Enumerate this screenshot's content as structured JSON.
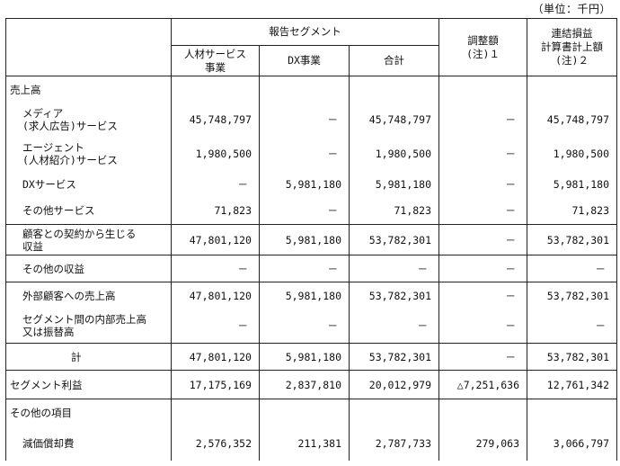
{
  "unit_note": "（単位：千円）",
  "header": {
    "segment_group": "報告セグメント",
    "col_hr": [
      "人材サービス",
      "事業"
    ],
    "col_dx": "DX事業",
    "col_total": "合計",
    "col_adj": [
      "調整額",
      "(注)１"
    ],
    "col_consol": [
      "連結損益",
      "計算書計上額",
      "(注)２"
    ]
  },
  "rows": [
    {
      "label": [
        "売上高"
      ],
      "indent": 0,
      "values": [
        "",
        "",
        "",
        "",
        ""
      ]
    },
    {
      "label": [
        "メディア",
        "(求人広告)サービス"
      ],
      "indent": 1,
      "values": [
        "45,748,797",
        "－",
        "45,748,797",
        "－",
        "45,748,797"
      ]
    },
    {
      "label": [
        "エージェント",
        "(人材紹介)サービス"
      ],
      "indent": 1,
      "values": [
        "1,980,500",
        "－",
        "1,980,500",
        "－",
        "1,980,500"
      ]
    },
    {
      "label": [
        "DXサービス"
      ],
      "indent": 1,
      "values": [
        "－",
        "5,981,180",
        "5,981,180",
        "－",
        "5,981,180"
      ]
    },
    {
      "label": [
        "その他サービス"
      ],
      "indent": 1,
      "values": [
        "71,823",
        "－",
        "71,823",
        "－",
        "71,823"
      ]
    },
    {
      "label": [
        "顧客との契約から生じる",
        "収益"
      ],
      "indent": 1,
      "values": [
        "47,801,120",
        "5,981,180",
        "53,782,301",
        "－",
        "53,782,301"
      ]
    },
    {
      "label": [
        "その他の収益"
      ],
      "indent": 1,
      "values": [
        "－",
        "－",
        "－",
        "－",
        "－"
      ]
    },
    {
      "label": [
        "外部顧客への売上高"
      ],
      "indent": 1,
      "values": [
        "47,801,120",
        "5,981,180",
        "53,782,301",
        "－",
        "53,782,301"
      ]
    },
    {
      "label": [
        "セグメント間の内部売上高",
        "又は振替高"
      ],
      "indent": 1,
      "values": [
        "－",
        "－",
        "－",
        "－",
        "－"
      ]
    },
    {
      "label": [
        "計"
      ],
      "indent": 2,
      "values": [
        "47,801,120",
        "5,981,180",
        "53,782,301",
        "－",
        "53,782,301"
      ]
    },
    {
      "label": [
        "セグメント利益"
      ],
      "indent": 0,
      "values": [
        "17,175,169",
        "2,837,810",
        "20,012,979",
        "△7,251,636",
        "12,761,342"
      ]
    },
    {
      "label": [
        "その他の項目"
      ],
      "indent": 0,
      "values": [
        "",
        "",
        "",
        "",
        ""
      ]
    },
    {
      "label": [
        "減価償却費"
      ],
      "indent": 1,
      "values": [
        "2,576,352",
        "211,381",
        "2,787,733",
        "279,063",
        "3,066,797"
      ]
    }
  ]
}
